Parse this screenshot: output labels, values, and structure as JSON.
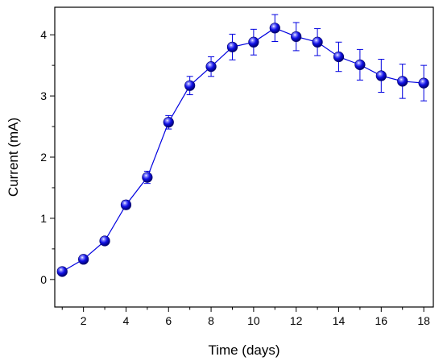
{
  "chart_data": {
    "type": "line",
    "title": "",
    "xlabel": "Time (days)",
    "ylabel": "Current (mA)",
    "xlim": [
      0.65,
      18.45
    ],
    "ylim": [
      -0.45,
      4.45
    ],
    "xticks": [
      2,
      4,
      6,
      8,
      10,
      12,
      14,
      16,
      18
    ],
    "yticks": [
      0,
      1,
      2,
      3,
      4
    ],
    "grid": false,
    "legend": "none",
    "series": [
      {
        "color": "#0000e0",
        "marker": "sphere",
        "x": [
          1,
          2,
          3,
          4,
          5,
          6,
          7,
          8,
          9,
          10,
          11,
          12,
          13,
          14,
          15,
          16,
          17,
          18
        ],
        "y": [
          0.13,
          0.33,
          0.63,
          1.22,
          1.67,
          2.57,
          3.17,
          3.48,
          3.8,
          3.88,
          4.11,
          3.97,
          3.88,
          3.64,
          3.51,
          3.33,
          3.24,
          3.21
        ],
        "error": [
          0.03,
          0.04,
          0.04,
          0.07,
          0.1,
          0.11,
          0.15,
          0.16,
          0.21,
          0.21,
          0.22,
          0.23,
          0.22,
          0.24,
          0.25,
          0.27,
          0.28,
          0.29
        ]
      }
    ]
  }
}
